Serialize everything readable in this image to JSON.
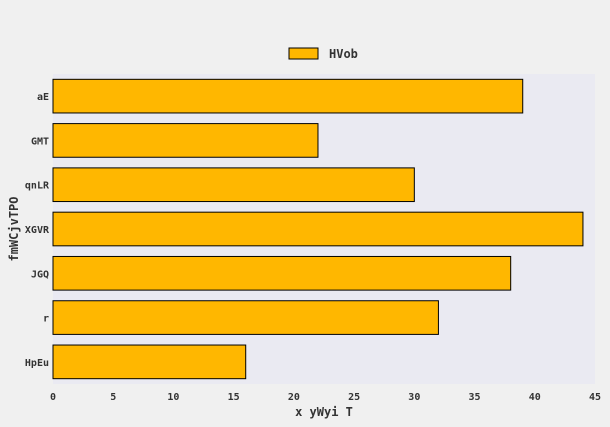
{
  "chart_data": {
    "type": "bar",
    "orientation": "horizontal",
    "categories": [
      "aE",
      "GMT",
      "qnLR",
      "XGVR",
      "JGQ",
      "r",
      "HpEu"
    ],
    "series": [
      {
        "name": "HVob",
        "values": [
          39,
          22,
          30,
          44,
          38,
          32,
          16
        ]
      }
    ],
    "xlabel": "x yWyi T",
    "ylabel": "fmWCjvTPO",
    "xlim": [
      0,
      45
    ],
    "xticks": [
      0,
      5,
      10,
      15,
      20,
      25,
      30,
      35,
      40,
      45
    ],
    "grid": false,
    "legend_position": "top-center"
  },
  "colors": {
    "bar": "#ffb700",
    "plot_bg": "#eaeaf2",
    "page_bg": "#f0f0f0",
    "edge": "#000000"
  }
}
